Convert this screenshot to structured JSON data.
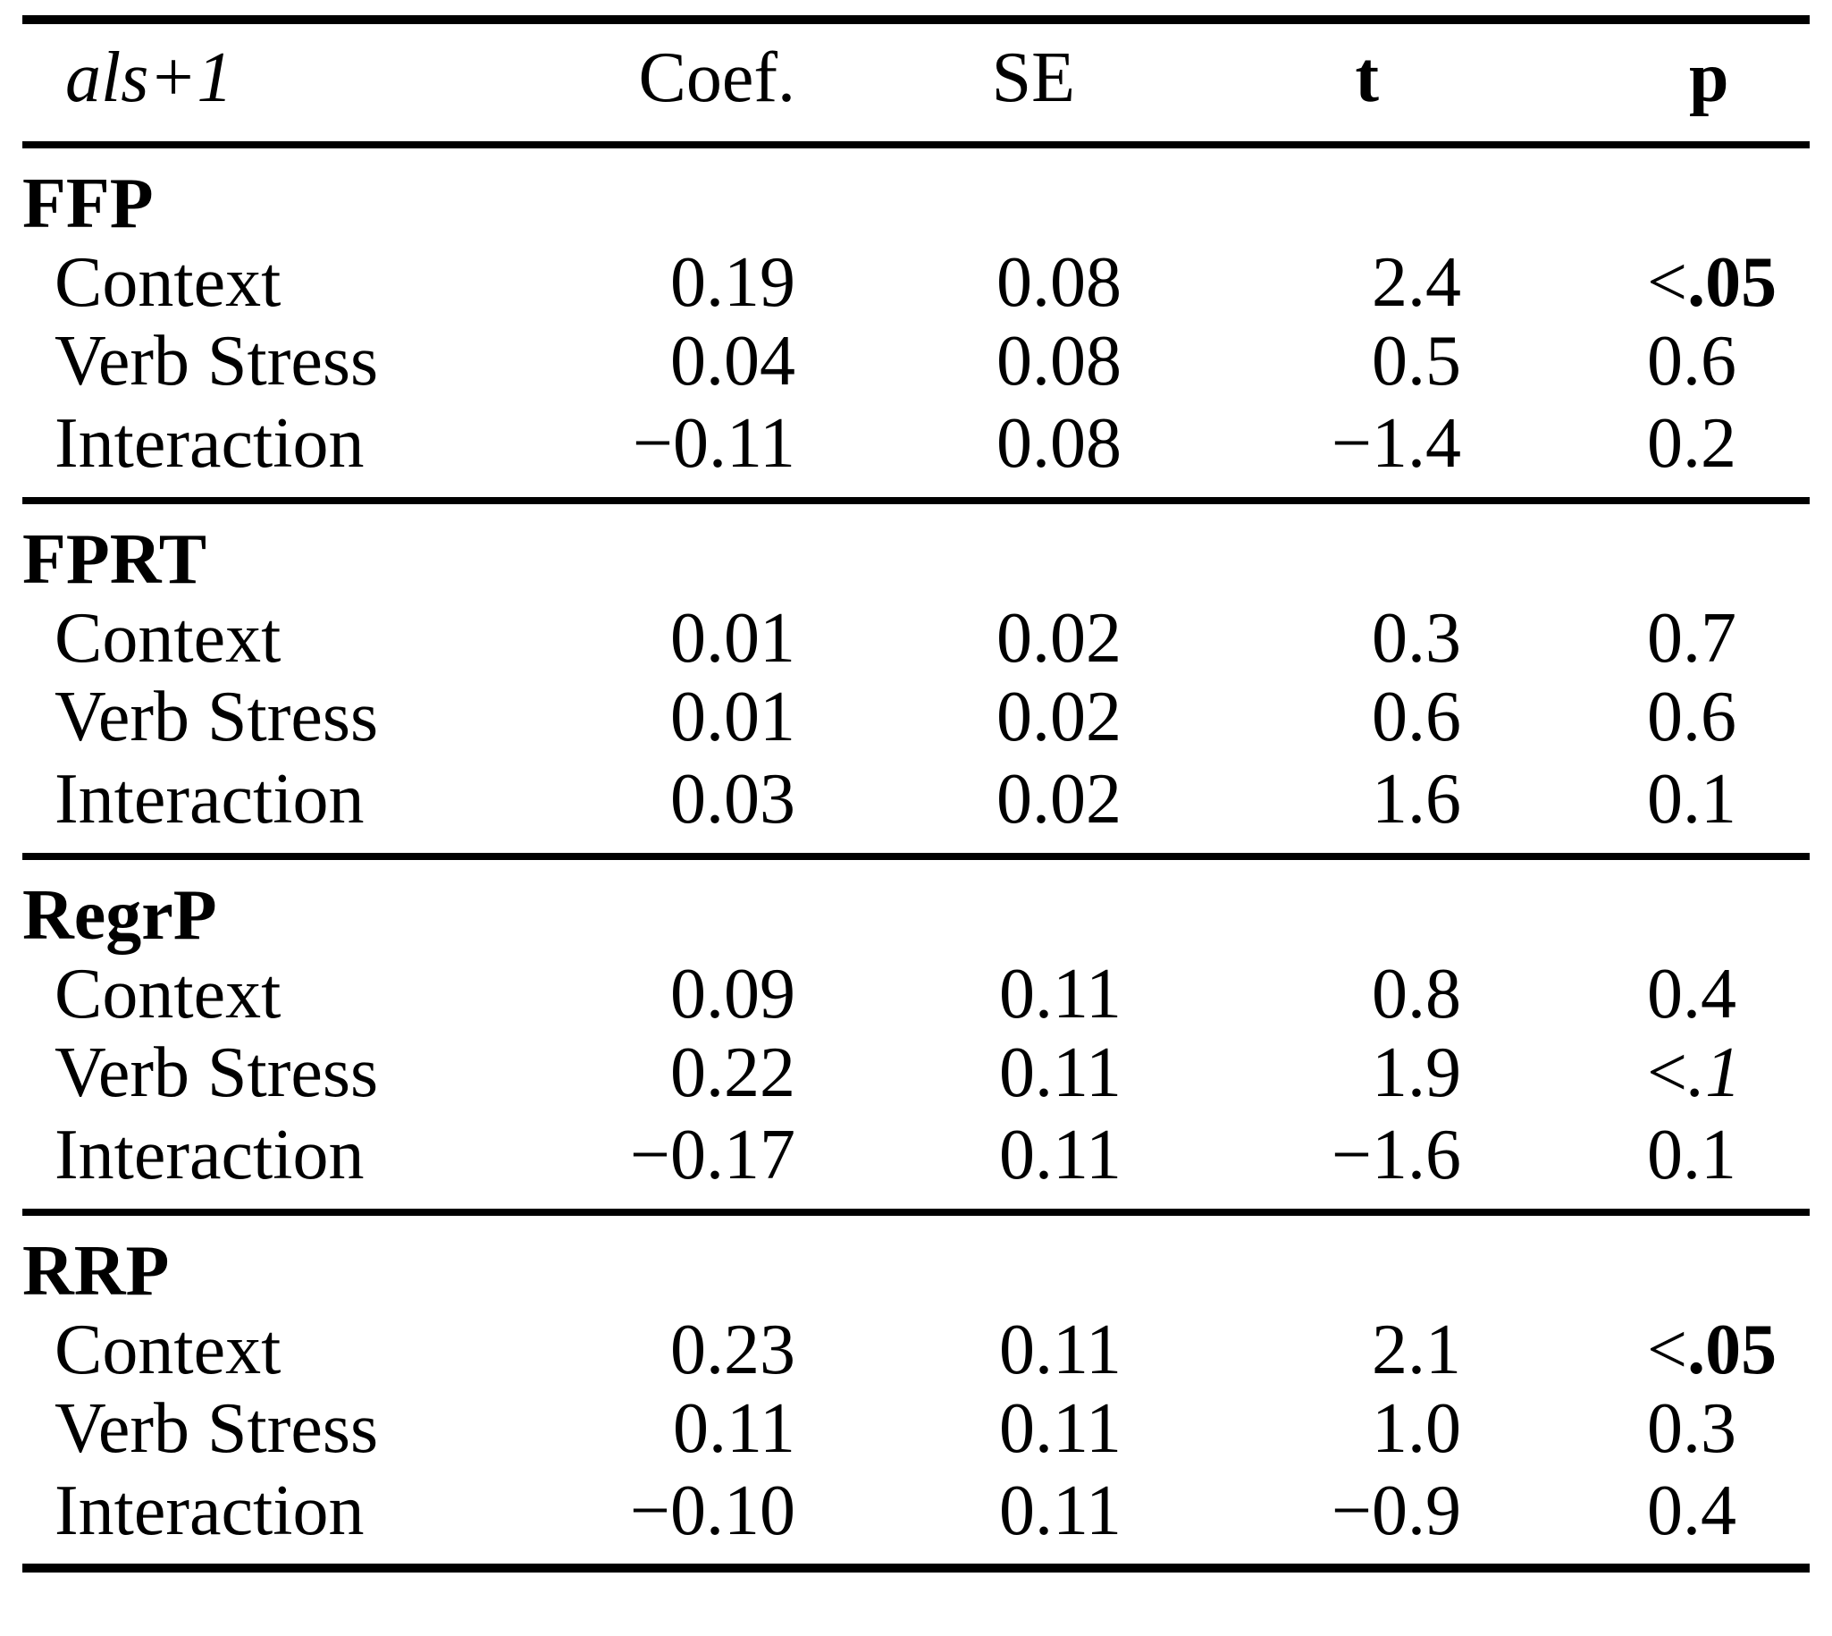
{
  "page": {
    "background_color": "#ffffff",
    "text_color": "#000000"
  },
  "table": {
    "header": {
      "row_label_italic": "als",
      "row_label_suffix": "+1",
      "coef": "Coef.",
      "se": "SE",
      "t": "t",
      "p": "p"
    },
    "sections": [
      {
        "name": "FFP",
        "rows": [
          {
            "label": "Context",
            "coef": "0.19",
            "se": "0.08",
            "t": "2.4",
            "p_pre": "<",
            "p_val": ".05"
          },
          {
            "label": "Verb Stress",
            "coef": "0.04",
            "se": "0.08",
            "t": "0.5",
            "p": "0.6"
          },
          {
            "label": "Interaction",
            "coef": "−0.11",
            "se": "0.08",
            "t": "−1.4",
            "p": "0.2"
          }
        ]
      },
      {
        "name": "FPRT",
        "rows": [
          {
            "label": "Context",
            "coef": "0.01",
            "se": "0.02",
            "t": "0.3",
            "p": "0.7"
          },
          {
            "label": "Verb Stress",
            "coef": "0.01",
            "se": "0.02",
            "t": "0.6",
            "p": "0.6"
          },
          {
            "label": "Interaction",
            "coef": "0.03",
            "se": "0.02",
            "t": "1.6",
            "p": "0.1"
          }
        ]
      },
      {
        "name": "RegrP",
        "rows": [
          {
            "label": "Context",
            "coef": "0.09",
            "se": "0.11",
            "t": "0.8",
            "p": "0.4"
          },
          {
            "label": "Verb Stress",
            "coef": "0.22",
            "se": "0.11",
            "t": "1.9",
            "p_pre": "<",
            "p_val": ".1"
          },
          {
            "label": "Interaction",
            "coef": "−0.17",
            "se": "0.11",
            "t": "−1.6",
            "p": "0.1"
          }
        ]
      },
      {
        "name": "RRP",
        "rows": [
          {
            "label": "Context",
            "coef": "0.23",
            "se": "0.11",
            "t": "2.1",
            "p_pre": "<",
            "p_val": ".05"
          },
          {
            "label": "Verb Stress",
            "coef": "0.11",
            "se": "0.11",
            "t": "1.0",
            "p": "0.3"
          },
          {
            "label": "Interaction",
            "coef": "−0.10",
            "se": "0.11",
            "t": "−0.9",
            "p": "0.4"
          }
        ]
      }
    ]
  }
}
